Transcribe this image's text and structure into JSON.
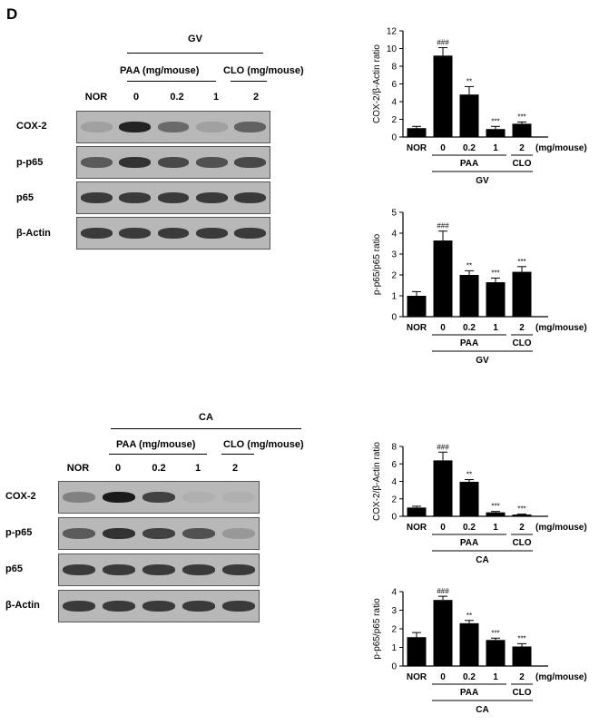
{
  "panel_letter": "D",
  "blots": [
    {
      "group": "GV",
      "paa_label": "PAA (mg/mouse)",
      "clo_label": "CLO (mg/mouse)",
      "lanes": [
        "NOR",
        "0",
        "0.2",
        "1",
        "2"
      ],
      "rows": [
        "COX-2",
        "p-p65",
        "p65",
        "β-Actin"
      ],
      "band_intensity": [
        [
          0.15,
          0.95,
          0.5,
          0.15,
          0.55
        ],
        [
          0.6,
          0.85,
          0.7,
          0.65,
          0.7
        ],
        [
          0.8,
          0.8,
          0.8,
          0.8,
          0.8
        ],
        [
          0.8,
          0.8,
          0.8,
          0.8,
          0.8
        ]
      ]
    },
    {
      "group": "CA",
      "paa_label": "PAA (mg/mouse)",
      "clo_label": "CLO (mg/mouse)",
      "lanes": [
        "NOR",
        "0",
        "0.2",
        "1",
        "2"
      ],
      "rows": [
        "COX-2",
        "p-p65",
        "p65",
        "β-Actin"
      ],
      "band_intensity": [
        [
          0.35,
          1.0,
          0.75,
          0.05,
          0.05
        ],
        [
          0.6,
          0.85,
          0.75,
          0.65,
          0.2
        ],
        [
          0.8,
          0.8,
          0.8,
          0.8,
          0.8
        ],
        [
          0.8,
          0.8,
          0.8,
          0.8,
          0.8
        ]
      ]
    }
  ],
  "chart_data": [
    {
      "type": "bar",
      "categories": [
        "NOR",
        "0",
        "0.2",
        "1",
        "2"
      ],
      "values": [
        1.0,
        9.2,
        4.8,
        0.9,
        1.5
      ],
      "errors": [
        0.2,
        0.9,
        0.9,
        0.3,
        0.2
      ],
      "annotations": [
        "",
        "###",
        "**",
        "***",
        "***"
      ],
      "ylabel": "COX-2/β-Actin ratio",
      "ylim": [
        0,
        12
      ],
      "yticks": [
        0,
        2,
        4,
        6,
        8,
        10,
        12
      ],
      "unit_label": "(mg/mouse)",
      "paa_label": "PAA",
      "clo_label": "CLO",
      "group_label": "GV"
    },
    {
      "type": "bar",
      "categories": [
        "NOR",
        "0",
        "0.2",
        "1",
        "2"
      ],
      "values": [
        1.0,
        3.65,
        2.0,
        1.65,
        2.15
      ],
      "errors": [
        0.2,
        0.45,
        0.2,
        0.2,
        0.25
      ],
      "annotations": [
        "",
        "###",
        "**",
        "***",
        "***"
      ],
      "ylabel": "p-p65/p65 ratio",
      "ylim": [
        0,
        5
      ],
      "yticks": [
        0,
        1,
        2,
        3,
        4,
        5
      ],
      "unit_label": "(mg/mouse)",
      "paa_label": "PAA",
      "clo_label": "CLO",
      "group_label": "GV"
    },
    {
      "type": "bar",
      "categories": [
        "NOR",
        "0",
        "0.2",
        "1",
        "2"
      ],
      "values": [
        1.0,
        6.4,
        3.95,
        0.45,
        0.2
      ],
      "errors": [
        0.15,
        0.95,
        0.25,
        0.1,
        0.05
      ],
      "annotations": [
        "",
        "###",
        "**",
        "***",
        "***"
      ],
      "ylabel": "COX-2/β-Actin ratio",
      "ylim": [
        0,
        8
      ],
      "yticks": [
        0,
        2,
        4,
        6,
        8
      ],
      "unit_label": "(mg/mouse)",
      "paa_label": "PAA",
      "clo_label": "CLO",
      "group_label": "CA"
    },
    {
      "type": "bar",
      "categories": [
        "NOR",
        "0",
        "0.2",
        "1",
        "2"
      ],
      "values": [
        1.55,
        3.55,
        2.3,
        1.4,
        1.05
      ],
      "errors": [
        0.25,
        0.2,
        0.15,
        0.1,
        0.15
      ],
      "annotations": [
        "",
        "###",
        "**",
        "***",
        "***"
      ],
      "ylabel": "p-p65/p65 ratio",
      "ylim": [
        0,
        4
      ],
      "yticks": [
        0,
        1,
        2,
        3,
        4
      ],
      "unit_label": "(mg/mouse)",
      "paa_label": "PAA",
      "clo_label": "CLO",
      "group_label": "CA"
    }
  ]
}
